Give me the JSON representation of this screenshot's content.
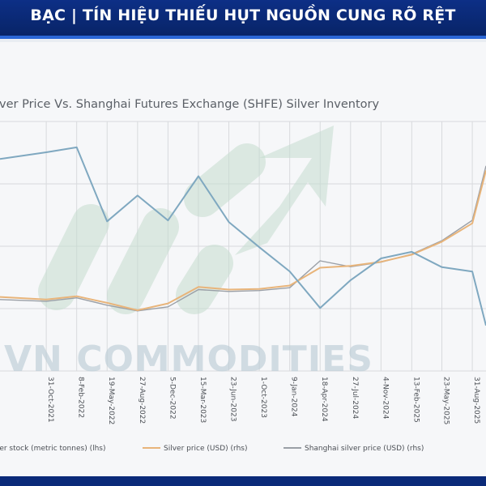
{
  "banner": {
    "title": "BẠC | TÍN HIỆU THIẾU HỤT NGUỒN CUNG RÕ RỆT"
  },
  "watermark": {
    "text": "VN COMMODITIES"
  },
  "colors": {
    "banner": "#0b2a79",
    "inventory": "#7fa8c0",
    "silver_price": "#e8b47a",
    "shanghai_price": "#9a9fa6",
    "grid": "#d8dadd"
  },
  "chart_data": {
    "type": "line",
    "title": "lver Price Vs. Shanghai Futures Exchange (SHFE) Silver Inventory",
    "x": [
      "2021-06-01",
      "2021-10-31",
      "2022-02-08",
      "2022-05-19",
      "2022-08-27",
      "2022-12-05",
      "2023-03-15",
      "2023-06-23",
      "2023-10-01",
      "2024-01-09",
      "2024-04-18",
      "2024-07-27",
      "2024-11-04",
      "2025-02-13",
      "2025-05-23",
      "2025-08-31",
      "2025-10-15"
    ],
    "x_tick_labels": [
      "31-Oct-2021",
      "8-Feb-2022",
      "19-May-2022",
      "27-Aug-2022",
      "5-Dec-2022",
      "15-Mar-2023",
      "23-Jun-2023",
      "1-Oct-2023",
      "9-Jan-2024",
      "18-Apr-2024",
      "27-Jul-2024",
      "4-Nov-2024",
      "13-Feb-2025",
      "23-May-2025",
      "31-Aug-2025"
    ],
    "y_scale": "normalized 0-100, no printed axis values",
    "ylim": [
      0,
      100
    ],
    "grid": true,
    "legend_position": "bottom",
    "series": [
      {
        "name": "ver stock (metric tonnes) (lhs)",
        "values": [
          85,
          88,
          90,
          60,
          70,
          60,
          78,
          60,
          50,
          40,
          25,
          36,
          45,
          48,
          42,
          40,
          18
        ]
      },
      {
        "name": "Silver price (USD) (rhs)",
        "values": [
          30,
          29,
          30,
          27,
          24,
          27,
          34,
          33,
          33,
          34,
          41,
          42,
          44,
          47,
          52,
          59,
          80
        ]
      },
      {
        "name": "Shanghai silver price (USD) (rhs)",
        "values": [
          29,
          28,
          29,
          26,
          24,
          26,
          33,
          32,
          32,
          33,
          44,
          42,
          44,
          47,
          52,
          60,
          82
        ]
      }
    ]
  }
}
